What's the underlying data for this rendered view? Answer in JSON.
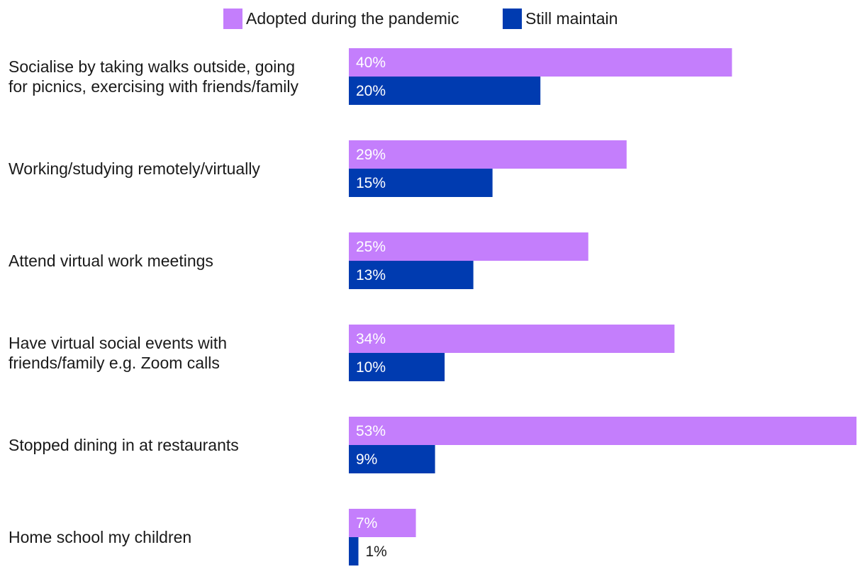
{
  "chart_data": {
    "type": "bar",
    "orientation": "horizontal",
    "categories": [
      [
        "Socialise by taking walks outside, going",
        "for picnics, exercising with friends/family"
      ],
      [
        "Working/studying remotely/virtually"
      ],
      [
        "Attend virtual work meetings"
      ],
      [
        "Have virtual social events with",
        "friends/family e.g. Zoom calls"
      ],
      [
        "Stopped dining in at restaurants"
      ],
      [
        "Home school my children"
      ]
    ],
    "series": [
      {
        "name": "Adopted during the pandemic",
        "color": "#c47efc",
        "values": [
          40,
          29,
          25,
          34,
          53,
          7
        ],
        "labels": [
          "40%",
          "29%",
          "25%",
          "34%",
          "53%",
          "7%"
        ]
      },
      {
        "name": "Still maintain",
        "color": "#003bb0",
        "values": [
          20,
          15,
          13,
          10,
          9,
          1
        ],
        "labels": [
          "20%",
          "15%",
          "13%",
          "10%",
          "9%",
          "1%"
        ]
      }
    ],
    "xlim": [
      0,
      53
    ],
    "value_unit": "%",
    "legend_position": "top",
    "grid": false
  }
}
